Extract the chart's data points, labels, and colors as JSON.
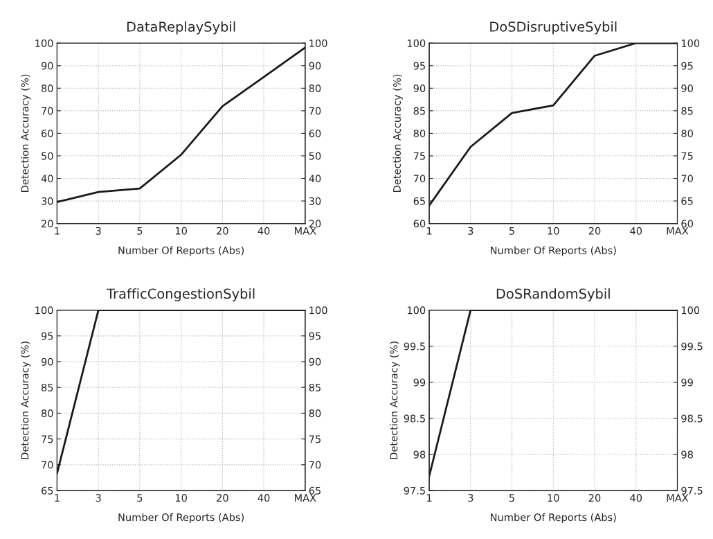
{
  "chart_data": [
    {
      "type": "line",
      "title": "DataReplaySybil",
      "xlabel": "Number Of Reports (Abs)",
      "ylabel": "Detection Accuracy (%)",
      "categories": [
        "1",
        "3",
        "5",
        "10",
        "20",
        "40",
        "MAX"
      ],
      "series": [
        {
          "color": "#1a1a1a",
          "values": [
            29.5,
            34,
            35.5,
            50.5,
            72,
            85,
            98
          ]
        }
      ],
      "ylim": [
        20,
        100
      ],
      "yticks": [
        20,
        30,
        40,
        50,
        60,
        70,
        80,
        90,
        100
      ],
      "y2lim": [
        20,
        100
      ],
      "y2ticks": [
        20,
        30,
        40,
        50,
        60,
        70,
        80,
        90,
        100
      ],
      "grid": true
    },
    {
      "type": "line",
      "title": "DoSDisruptiveSybil",
      "xlabel": "Number Of Reports (Abs)",
      "ylabel": "Detection Accuracy (%)",
      "categories": [
        "1",
        "3",
        "5",
        "10",
        "20",
        "40",
        "MAX"
      ],
      "series": [
        {
          "color": "#1a1a1a",
          "values": [
            64,
            77,
            84.5,
            86.2,
            97.2,
            100,
            100
          ]
        }
      ],
      "ylim": [
        60,
        100
      ],
      "yticks": [
        60,
        65,
        70,
        75,
        80,
        85,
        90,
        95,
        100
      ],
      "y2lim": [
        60,
        100
      ],
      "y2ticks": [
        60,
        65,
        70,
        75,
        80,
        85,
        90,
        95,
        100
      ],
      "grid": true
    },
    {
      "type": "line",
      "title": "TrafficCongestionSybil",
      "xlabel": "Number Of Reports (Abs)",
      "ylabel": "Detection Accuracy (%)",
      "categories": [
        "1",
        "3",
        "5",
        "10",
        "20",
        "40",
        "MAX"
      ],
      "series": [
        {
          "color": "#1a1a1a",
          "values": [
            68.3,
            100,
            100,
            100,
            100,
            100,
            100
          ]
        }
      ],
      "ylim": [
        65,
        100
      ],
      "yticks": [
        65,
        70,
        75,
        80,
        85,
        90,
        95,
        100
      ],
      "y2lim": [
        65,
        100
      ],
      "y2ticks": [
        65,
        70,
        75,
        80,
        85,
        90,
        95,
        100
      ],
      "grid": true
    },
    {
      "type": "line",
      "title": "DoSRandomSybil",
      "xlabel": "Number Of Reports (Abs)",
      "ylabel": "Detection Accuracy (%)",
      "categories": [
        "1",
        "3",
        "5",
        "10",
        "20",
        "40",
        "MAX"
      ],
      "series": [
        {
          "color": "#1a1a1a",
          "values": [
            97.7,
            100,
            100,
            100,
            100,
            100,
            100
          ]
        }
      ],
      "ylim": [
        97.5,
        100
      ],
      "yticks": [
        97.5,
        98,
        98.5,
        99,
        99.5,
        100
      ],
      "y2lim": [
        97.5,
        100
      ],
      "y2ticks": [
        97.5,
        98,
        98.5,
        99,
        99.5,
        100
      ],
      "grid": true
    }
  ]
}
